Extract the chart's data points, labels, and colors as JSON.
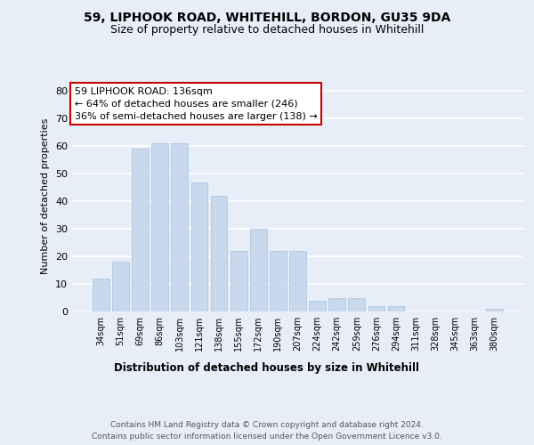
{
  "title1": "59, LIPHOOK ROAD, WHITEHILL, BORDON, GU35 9DA",
  "title2": "Size of property relative to detached houses in Whitehill",
  "xlabel": "Distribution of detached houses by size in Whitehill",
  "ylabel": "Number of detached properties",
  "categories": [
    "34sqm",
    "51sqm",
    "69sqm",
    "86sqm",
    "103sqm",
    "121sqm",
    "138sqm",
    "155sqm",
    "172sqm",
    "190sqm",
    "207sqm",
    "224sqm",
    "242sqm",
    "259sqm",
    "276sqm",
    "294sqm",
    "311sqm",
    "328sqm",
    "345sqm",
    "363sqm",
    "380sqm"
  ],
  "values": [
    12,
    18,
    59,
    61,
    61,
    47,
    42,
    22,
    30,
    22,
    22,
    4,
    5,
    5,
    2,
    2,
    0,
    0,
    0,
    0,
    1
  ],
  "bar_color": "#c8d9ee",
  "bar_edge_color": "#a8c0de",
  "annotation_box_text": "59 LIPHOOK ROAD: 136sqm\n← 64% of detached houses are smaller (246)\n36% of semi-detached houses are larger (138) →",
  "annotation_box_color": "#ffffff",
  "annotation_box_edge_color": "#cc0000",
  "ylim": [
    0,
    84
  ],
  "yticks": [
    0,
    10,
    20,
    30,
    40,
    50,
    60,
    70,
    80
  ],
  "footer_text": "Contains HM Land Registry data © Crown copyright and database right 2024.\nContains public sector information licensed under the Open Government Licence v3.0.",
  "background_color": "#e8eef8",
  "plot_background_color": "#e8eef8",
  "grid_color": "#ffffff"
}
